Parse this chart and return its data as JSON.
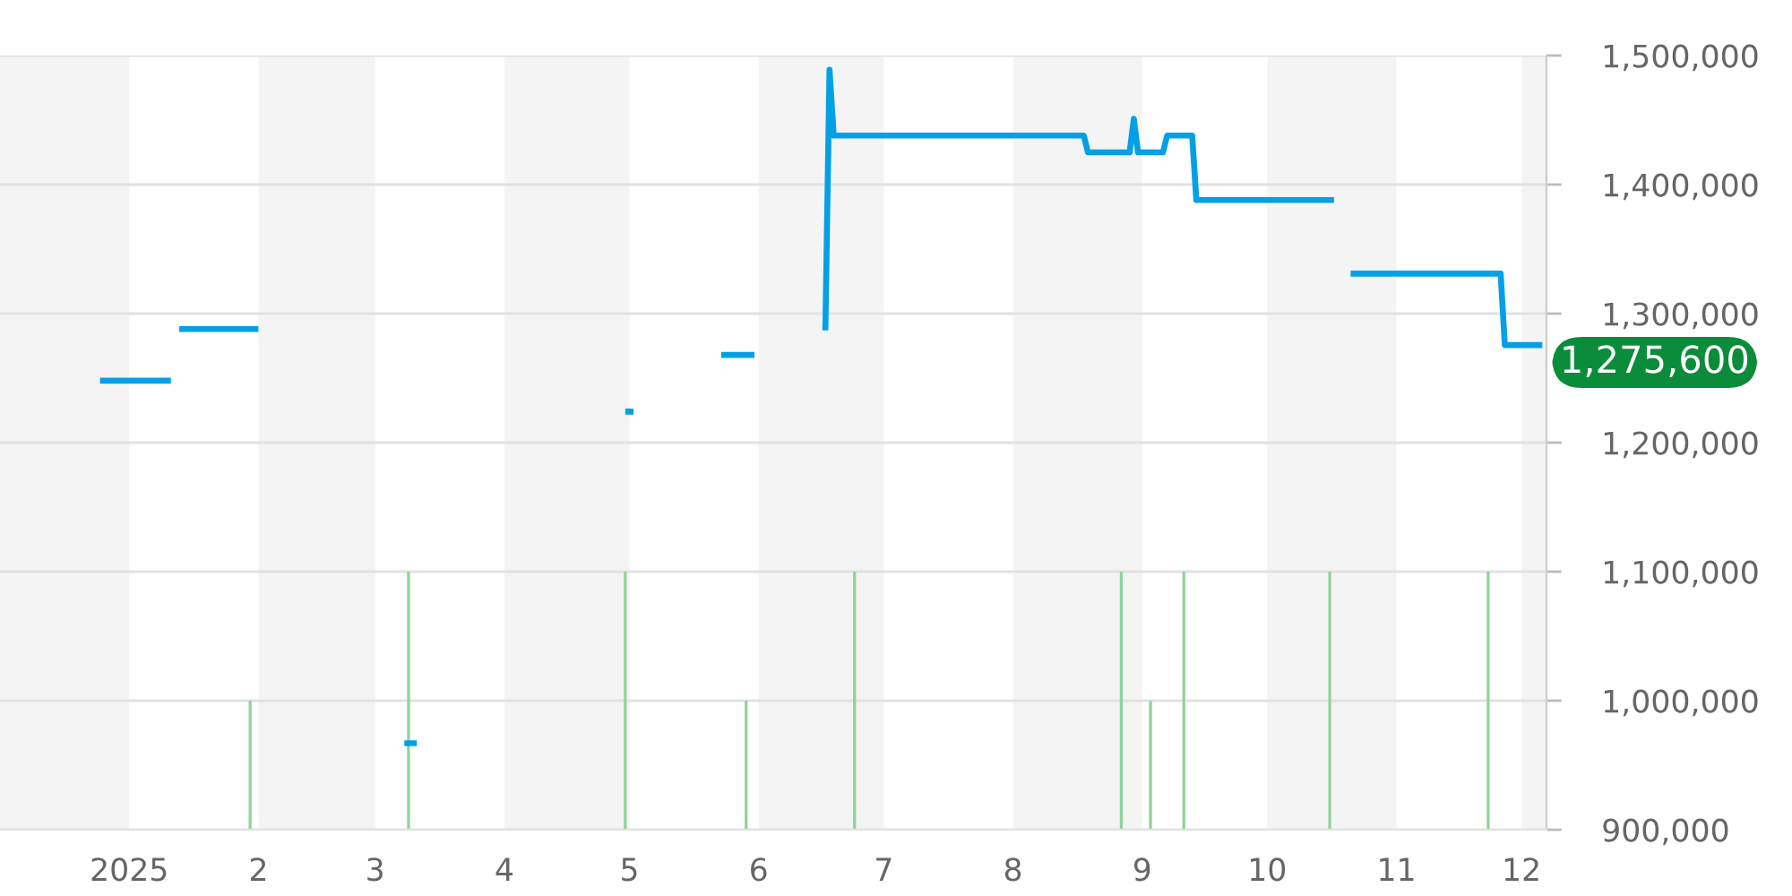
{
  "chart_data": {
    "type": "line",
    "series": [
      {
        "color": "#04a0e6",
        "x": [
          "2024-12-25",
          "2025-01-11",
          "2025-01-12",
          "2025-01-13",
          "2025-02-01",
          "2025-02-02",
          "2025-03-08",
          "2025-03-11",
          "2025-03-12",
          "2025-04-30",
          "2025-05-02",
          "2025-05-03",
          "2025-05-23",
          "2025-05-31",
          "2025-06-01",
          "2025-06-17",
          "2025-06-18",
          "2025-06-19",
          "2025-08-18",
          "2025-08-19",
          "2025-08-29",
          "2025-08-30",
          "2025-08-31",
          "2025-09-06",
          "2025-09-07",
          "2025-09-13",
          "2025-09-14",
          "2025-10-17",
          "2025-10-18",
          "2025-10-21",
          "2025-11-26",
          "2025-11-27",
          "2025-12-06"
        ],
        "values": [
          1248000,
          1248000,
          null,
          1288000,
          1288000,
          null,
          967000,
          967000,
          null,
          1224000,
          1224000,
          null,
          1268000,
          1268000,
          null,
          1287000,
          1489000,
          1438000,
          1438000,
          1425000,
          1425000,
          1451000,
          1425000,
          1425000,
          1438000,
          1438000,
          1388000,
          1388000,
          null,
          1331000,
          1331000,
          1275600,
          1275600
        ]
      },
      {
        "type": "bar",
        "color": "#8fd49a",
        "x": [
          "2025-01-30",
          "2025-03-09",
          "2025-04-30",
          "2025-05-29",
          "2025-06-24",
          "2025-08-27",
          "2025-09-03",
          "2025-09-11",
          "2025-10-16",
          "2025-11-23"
        ],
        "values": [
          100000,
          200000,
          200000,
          100000,
          200000,
          200000,
          100000,
          200000,
          200000,
          200000
        ],
        "base": [
          900000,
          900000,
          900000,
          900000,
          900000,
          900000,
          900000,
          900000,
          900000,
          900000
        ]
      }
    ],
    "xlim": [
      "2024-12-01",
      "2025-12-07"
    ],
    "xticks": [
      {
        "value": "2025-01-01",
        "label": "2025"
      },
      {
        "value": "2025-02-01",
        "label": "2"
      },
      {
        "value": "2025-03-01",
        "label": "3"
      },
      {
        "value": "2025-04-01",
        "label": "4"
      },
      {
        "value": "2025-05-01",
        "label": "5"
      },
      {
        "value": "2025-06-01",
        "label": "6"
      },
      {
        "value": "2025-07-01",
        "label": "7"
      },
      {
        "value": "2025-08-01",
        "label": "8"
      },
      {
        "value": "2025-09-01",
        "label": "9"
      },
      {
        "value": "2025-10-01",
        "label": "10"
      },
      {
        "value": "2025-11-01",
        "label": "11"
      },
      {
        "value": "2025-12-01",
        "label": "12"
      }
    ],
    "ylim": [
      900000,
      1500000
    ],
    "yticks": [
      {
        "value": 900000,
        "label": "900,000"
      },
      {
        "value": 1000000,
        "label": "1,000,000"
      },
      {
        "value": 1100000,
        "label": "1,100,000"
      },
      {
        "value": 1200000,
        "label": "1,200,000"
      },
      {
        "value": 1300000,
        "label": "1,300,000"
      },
      {
        "value": 1400000,
        "label": "1,400,000"
      },
      {
        "value": 1500000,
        "label": "1,500,000"
      }
    ],
    "grid": "y",
    "bands": [
      {
        "axis": "x",
        "from": "2024-12-01",
        "to": "2025-01-01",
        "color": "#f4f4f4"
      },
      {
        "axis": "x",
        "from": "2025-02-01",
        "to": "2025-03-01",
        "color": "#f4f4f4"
      },
      {
        "axis": "x",
        "from": "2025-04-01",
        "to": "2025-05-01",
        "color": "#f4f4f4"
      },
      {
        "axis": "x",
        "from": "2025-06-01",
        "to": "2025-07-01",
        "color": "#f4f4f4"
      },
      {
        "axis": "x",
        "from": "2025-08-01",
        "to": "2025-09-01",
        "color": "#f4f4f4"
      },
      {
        "axis": "x",
        "from": "2025-10-01",
        "to": "2025-11-01",
        "color": "#f4f4f4"
      },
      {
        "axis": "x",
        "from": "2025-12-01",
        "to": "2025-12-07",
        "color": "#f4f4f4"
      }
    ],
    "annotations": [
      {
        "text": "1,275,600",
        "x": "2025-12-06",
        "y": 1275600
      }
    ]
  }
}
